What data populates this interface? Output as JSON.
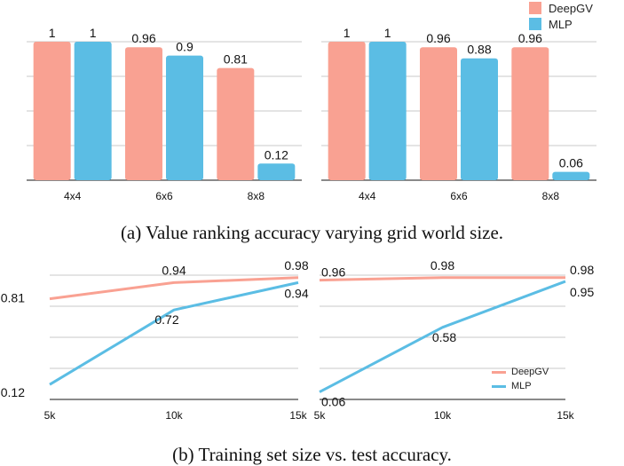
{
  "colors": {
    "deepgv": "#f9a192",
    "mlp": "#5bbde4",
    "grid": "#c8c8c8",
    "axis": "#444444"
  },
  "legend": {
    "deepgv": "DeepGV",
    "mlp": "MLP"
  },
  "captions": {
    "a": "(a) Value ranking accuracy varying grid world size.",
    "b": "(b) Training set size vs. test accuracy."
  },
  "chart_data": [
    {
      "type": "bar",
      "categories": [
        "4x4",
        "6x6",
        "8x8"
      ],
      "series": [
        {
          "name": "DeepGV",
          "values": [
            1,
            0.96,
            0.81
          ],
          "labels": [
            "1",
            "0.96",
            "0.81"
          ]
        },
        {
          "name": "MLP",
          "values": [
            1,
            0.9,
            0.12
          ],
          "labels": [
            "1",
            "0.9",
            "0.12"
          ]
        }
      ],
      "ylim": [
        0,
        1
      ],
      "grid": true
    },
    {
      "type": "bar",
      "categories": [
        "4x4",
        "6x6",
        "8x8"
      ],
      "series": [
        {
          "name": "DeepGV",
          "values": [
            1,
            0.96,
            0.96
          ],
          "labels": [
            "1",
            "0.96",
            "0.96"
          ]
        },
        {
          "name": "MLP",
          "values": [
            1,
            0.88,
            0.06
          ],
          "labels": [
            "1",
            "0.88",
            "0.06"
          ]
        }
      ],
      "ylim": [
        0,
        1
      ],
      "grid": true,
      "legend": "top-right"
    },
    {
      "type": "line",
      "x": [
        "5k",
        "10k",
        "15k"
      ],
      "series": [
        {
          "name": "DeepGV",
          "values": [
            0.81,
            0.94,
            0.98
          ],
          "labels": [
            "0.81",
            "0.94",
            "0.98"
          ]
        },
        {
          "name": "MLP",
          "values": [
            0.12,
            0.72,
            0.94
          ],
          "labels": [
            "0.12",
            "0.72",
            "0.94"
          ]
        }
      ],
      "ylim": [
        0,
        1
      ],
      "grid": true
    },
    {
      "type": "line",
      "x": [
        "5k",
        "10k",
        "15k"
      ],
      "series": [
        {
          "name": "DeepGV",
          "values": [
            0.96,
            0.98,
            0.98
          ],
          "labels": [
            "0.96",
            "0.98",
            "0.98"
          ]
        },
        {
          "name": "MLP",
          "values": [
            0.06,
            0.58,
            0.95
          ],
          "labels": [
            "0.06",
            "0.58",
            "0.95"
          ]
        }
      ],
      "ylim": [
        0,
        1
      ],
      "grid": true,
      "legend": "bottom-right"
    }
  ]
}
